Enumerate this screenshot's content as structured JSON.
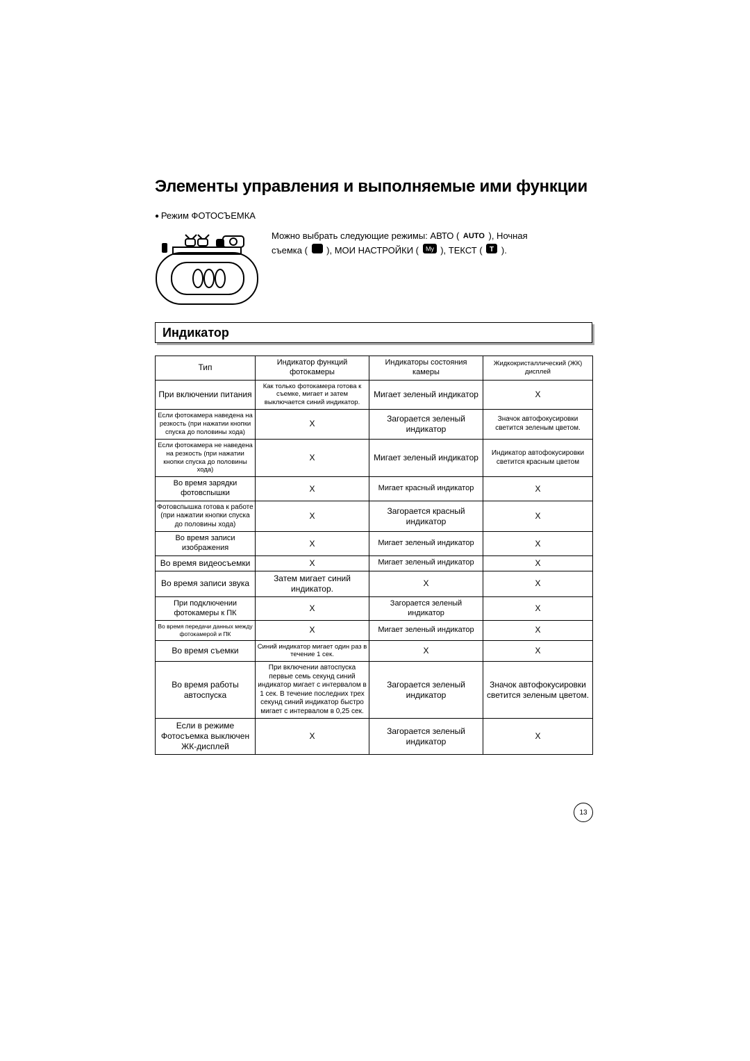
{
  "title": "Элементы управления и выполняемые ими функции",
  "bullet": "Режим ФОТОСЪЕМКА",
  "modes_text_parts": {
    "p0": "Можно выбрать следующие режимы: АВТО ( ",
    "auto_label": "AUTO",
    "p1": " ), Ночная",
    "p2": "съемка ( ",
    "p3": " ), МОИ НАСТРОЙКИ ( ",
    "my_label": "My",
    "p4": " ), ТЕКСТ ( ",
    "t_label": "T",
    "p5": " )."
  },
  "section_header": "Индикатор",
  "table": {
    "columns": [
      "Тип",
      "Индикатор функций фотокамеры",
      "Индикаторы состояния камеры",
      "Жидкокристаллический (ЖК) дисплей"
    ],
    "rows": [
      [
        "При включении питания",
        "Как только фотокамера готова к съемке, мигает и затем выключается синий индикатор.",
        "Мигает зеленый индикатор",
        "X"
      ],
      [
        "Если фотокамера наведена на резкость (при нажатии кнопки спуска до половины хода)",
        "X",
        "Загорается зеленый индикатор",
        "Значок автофокусировки светится зеленым цветом."
      ],
      [
        "Если фотокамера не наведена на резкость (при нажатии кнопки спуска до половины хода)",
        "X",
        "Мигает зеленый индикатор",
        "Индикатор автофокусировки светится красным цветом"
      ],
      [
        "Во время зарядки фотовспышки",
        "X",
        "Мигает красный индикатор",
        "X"
      ],
      [
        "Фотовспышка готова к работе (при нажатии кнопки спуска до половины хода)",
        "X",
        "Загорается красный индикатор",
        "X"
      ],
      [
        "Во время записи изображения",
        "X",
        "Мигает зеленый индикатор",
        "X"
      ],
      [
        "Во время видеосъемки",
        "X",
        "Мигает зеленый индикатор",
        "X"
      ],
      [
        "Во время записи звука",
        "Затем мигает синий индикатор.",
        "X",
        "X"
      ],
      [
        "При подключении фотокамеры к ПК",
        "X",
        "Загорается зеленый индикатор",
        "X"
      ],
      [
        "Во время передачи данных между фотокамерой и ПК",
        "X",
        "Мигает зеленый индикатор",
        "X"
      ],
      [
        "Во время съемки",
        "Синий индикатор мигает один раз в течение 1 сек.",
        "X",
        "X"
      ],
      [
        "Во время работы автоспуска",
        "При включении автоспуска первые семь секунд синий индикатор мигает с интервалом в 1 сек. В течение последних трех секунд синий индикатор быстро мигает с интервалом в 0,25 сек.",
        "Загорается зеленый индикатор",
        "Значок автофокусировки светится зеленым цветом."
      ],
      [
        "Если в режиме Фотосъемка выключен ЖК-дисплей",
        "X",
        "Загорается зеленый индикатор",
        "X"
      ]
    ],
    "cell_font_classes": [
      [
        "fs12",
        "fs11",
        "fs11",
        "fs9"
      ],
      [
        "fs12",
        "fs9",
        "fs12",
        "fs12"
      ],
      [
        "fs9",
        "fs12",
        "fs12",
        "fs10"
      ],
      [
        "fs9",
        "fs12",
        "fs12",
        "fs10"
      ],
      [
        "fs11",
        "fs12",
        "fs11",
        "fs12"
      ],
      [
        "fs10",
        "fs12",
        "fs12",
        "fs12"
      ],
      [
        "fs11",
        "fs12",
        "fs11",
        "fs12"
      ],
      [
        "fs12",
        "fs12",
        "fs11",
        "fs12"
      ],
      [
        "fs12",
        "fs12",
        "fs12",
        "fs12"
      ],
      [
        "fs11",
        "fs12",
        "fs11",
        "fs12"
      ],
      [
        "fs8",
        "fs12",
        "fs11",
        "fs12"
      ],
      [
        "fs12",
        "fs9",
        "fs12",
        "fs12"
      ],
      [
        "fs12",
        "fs10",
        "fs12",
        "fs12"
      ],
      [
        "fs12",
        "fs12",
        "fs12",
        "fs12"
      ]
    ]
  },
  "page_number": "13",
  "colors": {
    "text": "#000000",
    "bg": "#ffffff",
    "shadow": "#aaaaaa"
  }
}
